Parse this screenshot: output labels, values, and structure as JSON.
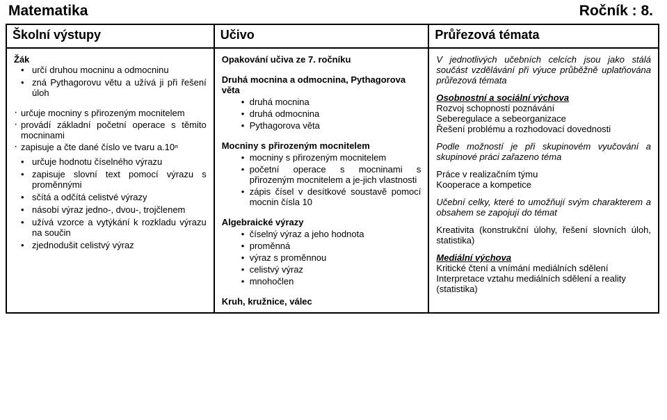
{
  "title": {
    "subject": "Matematika",
    "grade": "Ročník : 8."
  },
  "headers": {
    "c1": "Školní výstupy",
    "c2": "Učivo",
    "c3": "Průřezová témata"
  },
  "c1": {
    "zak": "Žák",
    "top": [
      "určí druhou mocninu a odmocninu",
      "zná Pythagorovu větu a užívá ji při řešení úloh"
    ],
    "mid_dots": [
      "určuje mocniny s přirozeným mocnitelem",
      "provádí základní početní operace s těmito mocninami",
      "zapisuje a čte dané číslo ve tvaru a.10ⁿ"
    ],
    "bottom": [
      "určuje hodnotu číselného výrazu",
      "zapisuje slovní text pomocí výrazu s proměnnými",
      "sčítá a odčítá celistvé výrazy",
      "násobí výraz jedno-, dvou-, trojčlenem",
      "užívá vzorce a vytýkání k rozkladu výrazu na součin",
      "zjednodušit celistvý výraz"
    ]
  },
  "c2": {
    "s1_head": "Opakování učiva ze 7. ročníku",
    "s2_head": "Druhá mocnina a odmocnina, Pythagorova věta",
    "s2": [
      "druhá mocnina",
      "druhá odmocnina",
      "Pythagorova věta"
    ],
    "s3_head": "Mocniny s přirozeným mocnitelem",
    "s3": [
      "mocniny s přirozeným mocnitelem",
      "početní operace s mocninami s přirozeným mocnitelem a je-jich vlastnosti",
      "zápis čísel v desítkové soustavě pomocí mocnin čísla 10"
    ],
    "s4_head": "Algebraické výrazy",
    "s4": [
      "číselný výraz a jeho hodnota",
      "proměnná",
      "výraz s proměnnou",
      "celistvý výraz",
      "mnohočlen"
    ],
    "s5_head": "Kruh, kružnice, válec"
  },
  "c3": {
    "p1": "V jednotlivých učebních celcích jsou jako stálá součást vzdělávání při výuce průběžně uplatňována průřezová témata",
    "h1": "Osobnostní a sociální výchova",
    "l1a": "Rozvoj schopností poznávání",
    "l1b": "Seberegulace a sebeorganizace",
    "l1c": "Řešení problému a rozhodovací dovednosti",
    "p2": "Podle možností je při skupinovém vyučování a skupinové práci zařazeno téma",
    "l2a": "Práce v realizačním týmu",
    "l2b": "Kooperace a kompetice",
    "p3": "Učební celky, které to umožňují svým charakterem a obsahem se zapojují do témat",
    "l3a": "Kreativita (konstrukční úlohy, řešení slovních úloh, statistika)",
    "h2": "Mediální výchova",
    "l4a": "Kritické čtení a vnímání mediálních sdělení",
    "l4b": "Interpretace vztahu mediálních sdělení a reality (statistika)"
  }
}
